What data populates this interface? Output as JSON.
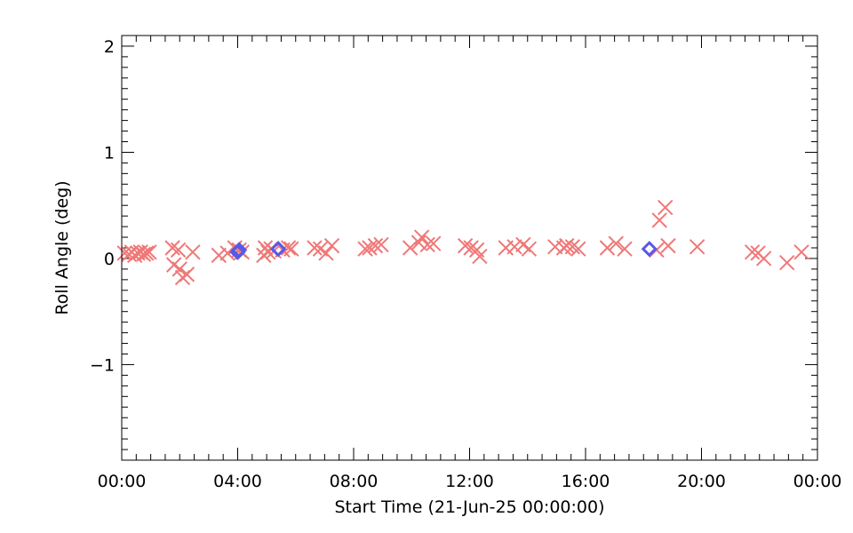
{
  "chart_data": {
    "type": "scatter",
    "title": "",
    "xlabel": "Start Time (21-Jun-25 00:00:00)",
    "ylabel": "Roll Angle (deg)",
    "xlim": [
      0,
      24
    ],
    "ylim": [
      -1.9,
      2.1
    ],
    "x_unit": "hours",
    "x_ticks": [
      {
        "value": 0,
        "label": "00:00"
      },
      {
        "value": 4,
        "label": "04:00"
      },
      {
        "value": 8,
        "label": "08:00"
      },
      {
        "value": 12,
        "label": "12:00"
      },
      {
        "value": 16,
        "label": "16:00"
      },
      {
        "value": 20,
        "label": "20:00"
      },
      {
        "value": 24,
        "label": "00:00"
      }
    ],
    "y_ticks": [
      {
        "value": 2,
        "label": "2"
      },
      {
        "value": 1,
        "label": "1"
      },
      {
        "value": 0,
        "label": "0"
      },
      {
        "value": -1,
        "label": "−1"
      }
    ],
    "grid": false,
    "series": [
      {
        "marker": "x",
        "color": "#f07878",
        "points": [
          [
            0.1,
            0.05
          ],
          [
            0.25,
            0.04
          ],
          [
            0.35,
            0.06
          ],
          [
            0.45,
            0.03
          ],
          [
            0.55,
            0.05
          ],
          [
            0.65,
            0.06
          ],
          [
            0.75,
            0.04
          ],
          [
            0.85,
            0.05
          ],
          [
            0.95,
            0.06
          ],
          [
            1.75,
            0.1
          ],
          [
            1.8,
            -0.06
          ],
          [
            1.95,
            0.08
          ],
          [
            2.0,
            -0.1
          ],
          [
            2.1,
            -0.18
          ],
          [
            2.25,
            -0.15
          ],
          [
            2.45,
            0.06
          ],
          [
            3.35,
            0.03
          ],
          [
            3.65,
            0.05
          ],
          [
            3.9,
            0.1
          ],
          [
            4.05,
            0.08
          ],
          [
            4.15,
            0.06
          ],
          [
            4.9,
            0.03
          ],
          [
            4.95,
            0.1
          ],
          [
            5.05,
            0.06
          ],
          [
            5.15,
            0.09
          ],
          [
            5.25,
            0.07
          ],
          [
            5.55,
            0.08
          ],
          [
            5.75,
            0.1
          ],
          [
            5.85,
            0.09
          ],
          [
            6.65,
            0.1
          ],
          [
            6.85,
            0.09
          ],
          [
            7.05,
            0.05
          ],
          [
            7.25,
            0.12
          ],
          [
            8.4,
            0.09
          ],
          [
            8.55,
            0.1
          ],
          [
            8.75,
            0.12
          ],
          [
            8.95,
            0.13
          ],
          [
            9.95,
            0.1
          ],
          [
            10.25,
            0.15
          ],
          [
            10.35,
            0.2
          ],
          [
            10.55,
            0.13
          ],
          [
            10.75,
            0.14
          ],
          [
            11.85,
            0.12
          ],
          [
            12.05,
            0.1
          ],
          [
            12.25,
            0.08
          ],
          [
            12.35,
            0.02
          ],
          [
            13.25,
            0.1
          ],
          [
            13.55,
            0.11
          ],
          [
            13.85,
            0.13
          ],
          [
            14.05,
            0.09
          ],
          [
            14.95,
            0.11
          ],
          [
            15.25,
            0.1
          ],
          [
            15.35,
            0.12
          ],
          [
            15.55,
            0.11
          ],
          [
            15.75,
            0.09
          ],
          [
            16.75,
            0.1
          ],
          [
            17.05,
            0.14
          ],
          [
            17.35,
            0.09
          ],
          [
            18.45,
            0.08
          ],
          [
            18.55,
            0.36
          ],
          [
            18.75,
            0.48
          ],
          [
            18.85,
            0.12
          ],
          [
            19.85,
            0.11
          ],
          [
            21.75,
            0.06
          ],
          [
            21.95,
            0.05
          ],
          [
            22.15,
            0.0
          ],
          [
            22.95,
            -0.04
          ],
          [
            23.45,
            0.06
          ]
        ]
      },
      {
        "marker": "diamond",
        "color": "#5858e8",
        "points": [
          [
            4.0,
            0.06
          ],
          [
            4.05,
            0.08
          ],
          [
            5.4,
            0.09
          ],
          [
            18.2,
            0.09
          ]
        ]
      }
    ]
  }
}
